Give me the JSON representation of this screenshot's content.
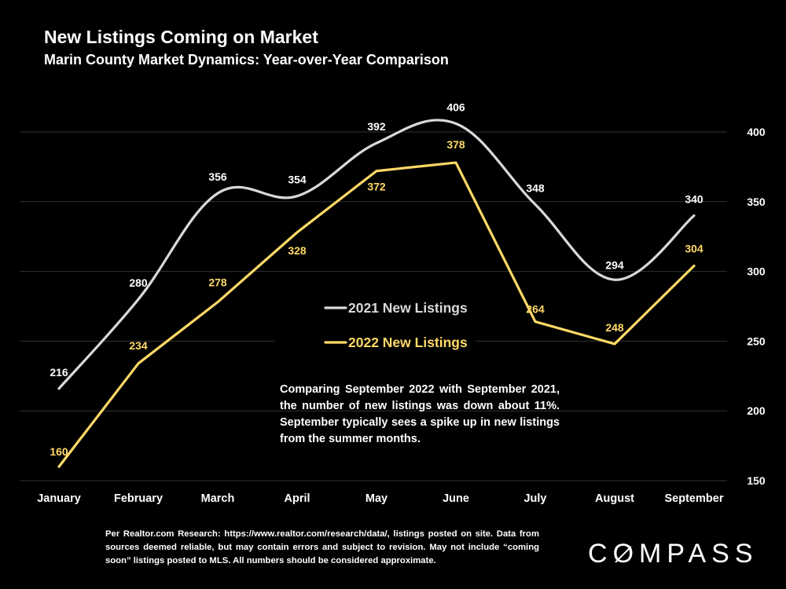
{
  "header": {
    "title": "New Listings Coming on Market",
    "subtitle": "Marin County Market Dynamics: Year-over-Year Comparison"
  },
  "note": "Comparing September 2022 with September 2021, the number of new listings was down about 11%. September typically sees a spike up in new listings from the summer months.",
  "footer": "Per Realtor.com Research:  https://www.realtor.com/research/data/, listings posted on site. Data from sources deemed reliable, but may contain errors and subject to revision. May not include “coming soon” listings posted to MLS. All numbers should be considered approximate.",
  "logo": {
    "prefix": "C",
    "o": "O",
    "suffix": "MPASS"
  },
  "colors": {
    "series2021": "#d9d9d9",
    "series2022": "#ffd966",
    "grid": "#333333",
    "text": "#ffffff"
  },
  "chart_data": {
    "type": "line",
    "title": "New Listings Coming on Market",
    "subtitle": "Marin County Market Dynamics: Year-over-Year Comparison",
    "categories": [
      "January",
      "February",
      "March",
      "April",
      "May",
      "June",
      "July",
      "August",
      "September"
    ],
    "series": [
      {
        "name": "2021 New Listings",
        "values": [
          216,
          280,
          356,
          354,
          392,
          406,
          348,
          294,
          340
        ],
        "color": "#d9d9d9",
        "smooth": true
      },
      {
        "name": "2022 New Listings",
        "values": [
          160,
          234,
          278,
          328,
          372,
          378,
          264,
          248,
          304
        ],
        "color": "#ffd966",
        "smooth": false
      }
    ],
    "ylim": [
      150,
      400
    ],
    "yticks": [
      150,
      200,
      250,
      300,
      350,
      400
    ],
    "y_axis_side": "right",
    "grid": true,
    "legend_position": "center",
    "xlabel": "",
    "ylabel": ""
  }
}
